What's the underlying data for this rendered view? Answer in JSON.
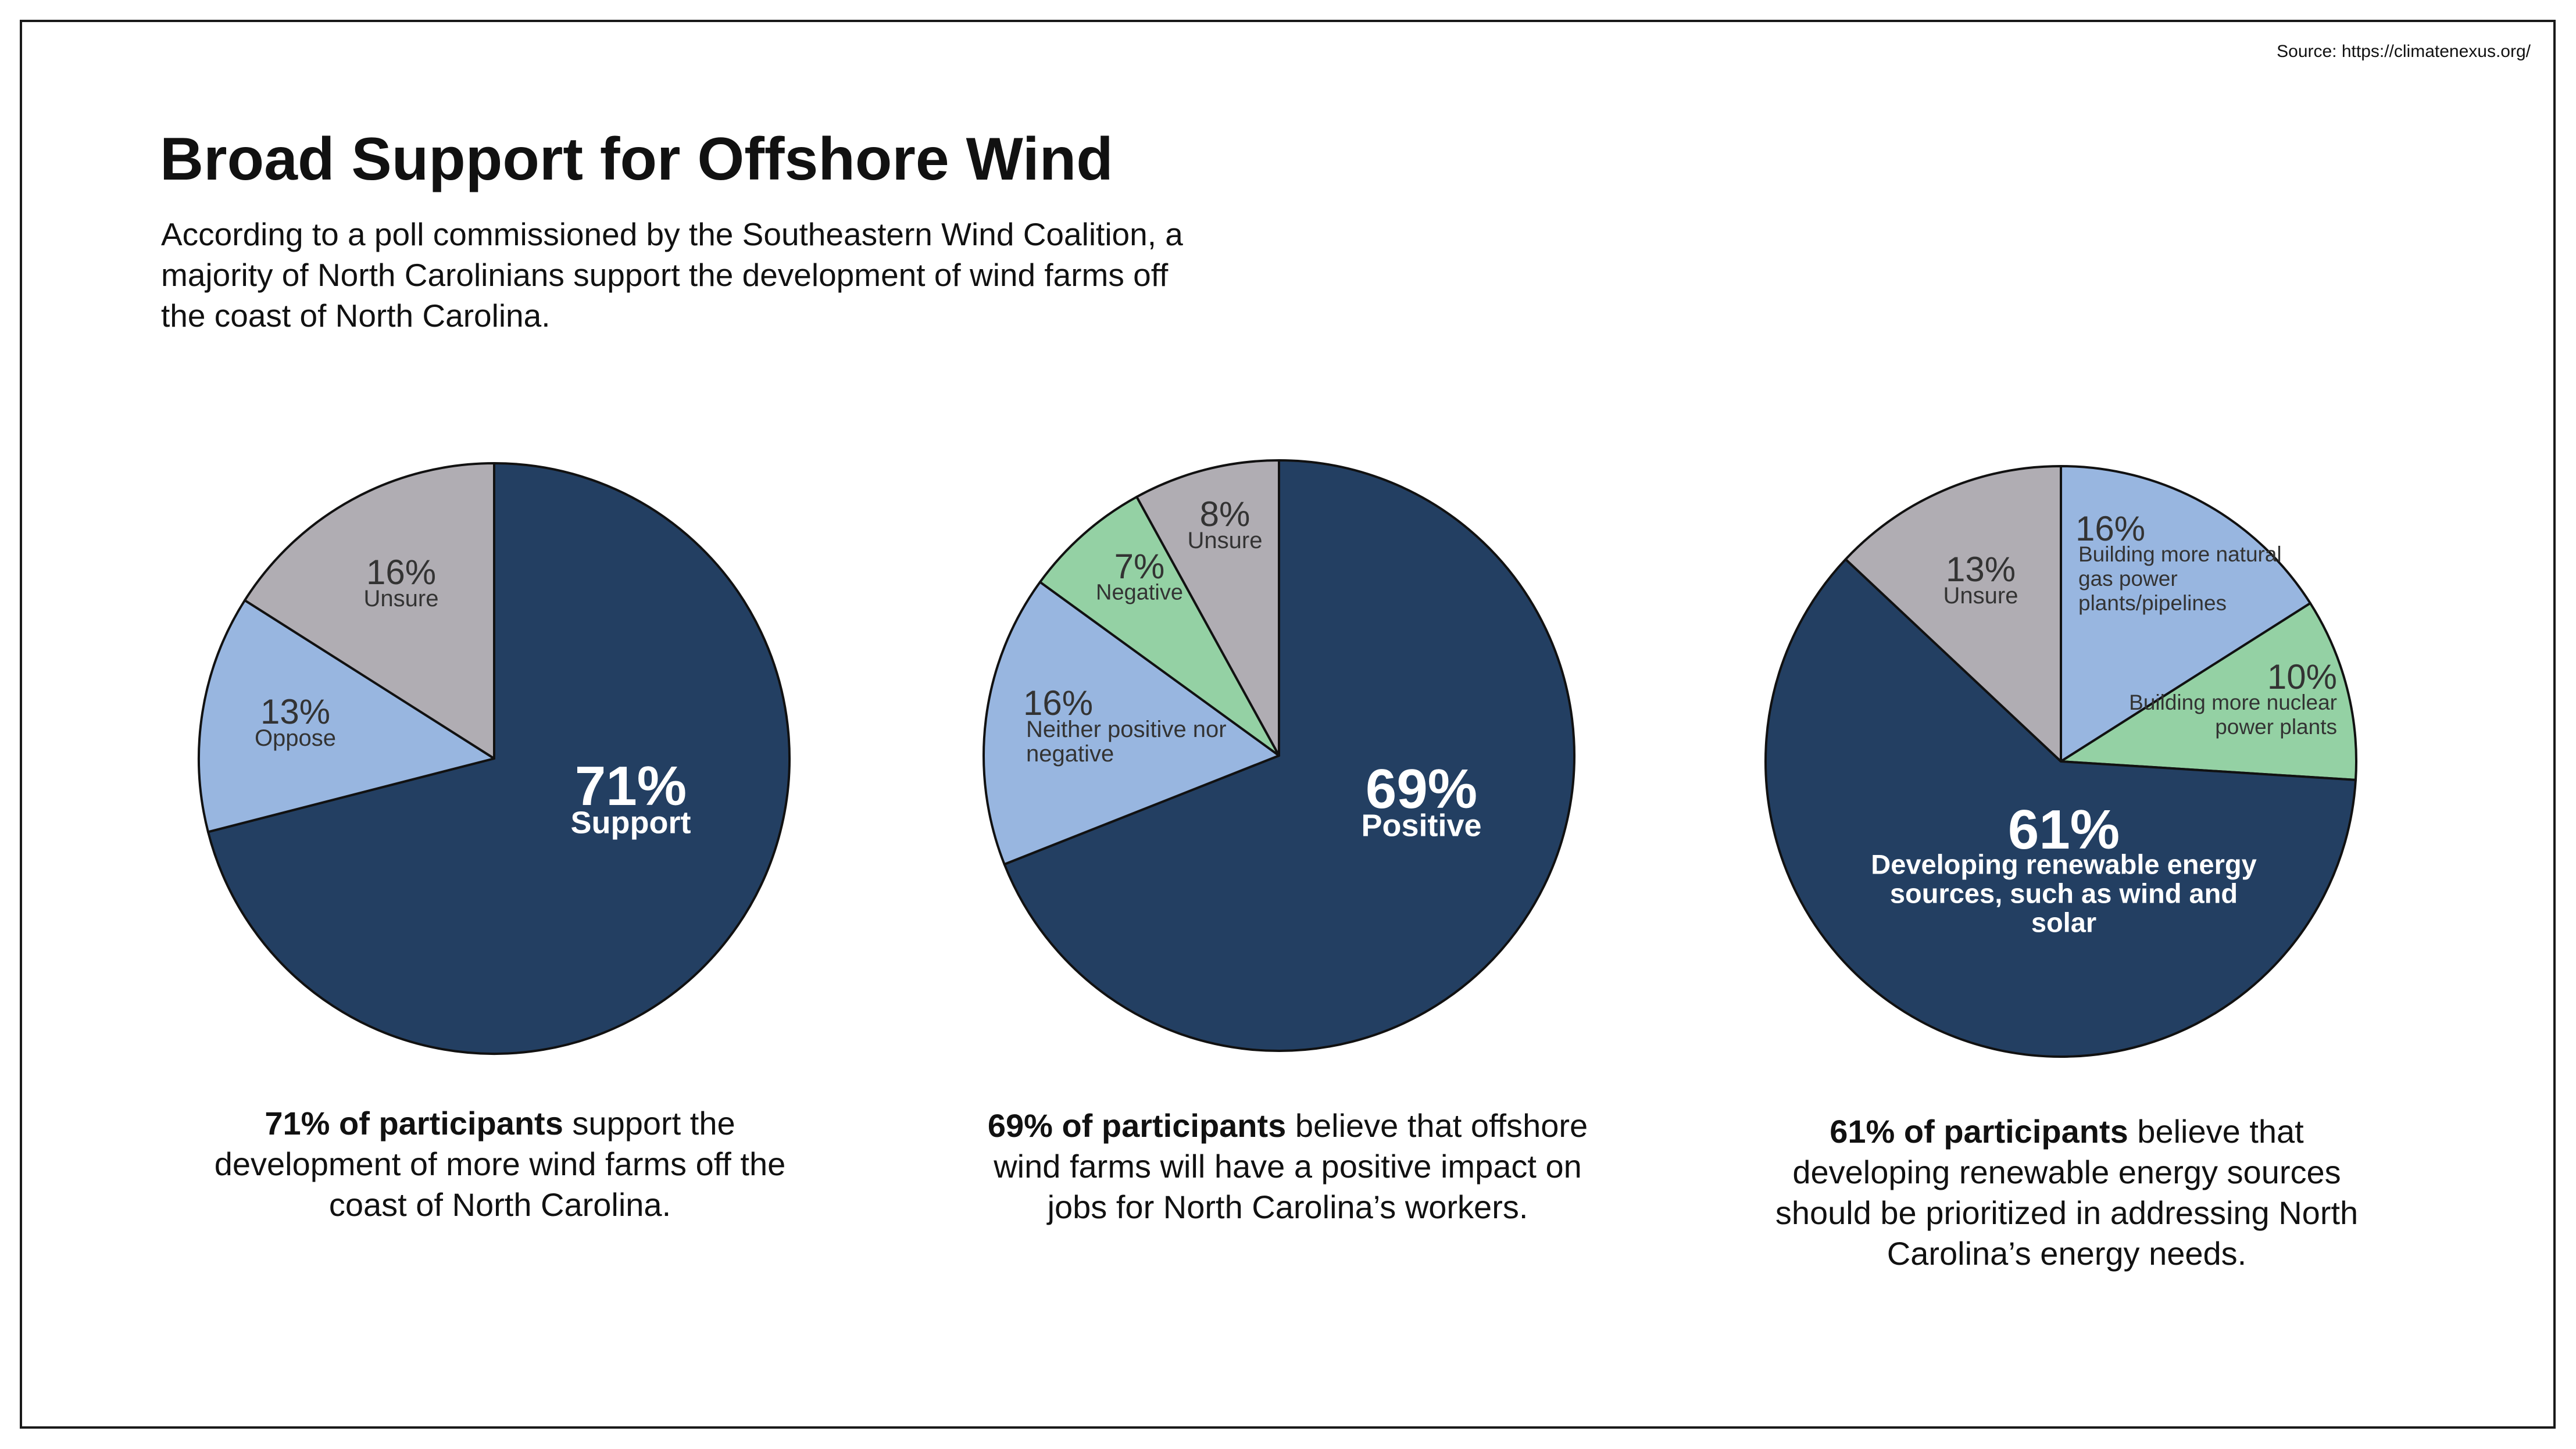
{
  "source": "Source: https://climatenexus.org/",
  "title": "Broad Support for Offshore Wind",
  "subtitle": "According to a poll commissioned by the Southeastern Wind Coalition, a majority of North Carolinians support the development of wind farms off the coast of North Carolina.",
  "colors": {
    "dark_blue": "#233f62",
    "light_blue": "#98b6e0",
    "gray": "#b0adb3",
    "green": "#94d1a4"
  },
  "chart_data": [
    {
      "type": "pie",
      "slices": [
        {
          "pct": "71%",
          "value": 71,
          "label": "Support",
          "color": "#233f62",
          "text_color": "#ffffff"
        },
        {
          "pct": "13%",
          "value": 13,
          "label": "Oppose",
          "color": "#98b6e0",
          "text_color": "#333333"
        },
        {
          "pct": "16%",
          "value": 16,
          "label": "Unsure",
          "color": "#b0adb3",
          "text_color": "#333333"
        }
      ]
    },
    {
      "type": "pie",
      "slices": [
        {
          "pct": "69%",
          "value": 69,
          "label": "Positive",
          "color": "#233f62",
          "text_color": "#ffffff"
        },
        {
          "pct": "16%",
          "value": 16,
          "label": "Neither positive nor negative",
          "color": "#98b6e0",
          "text_color": "#333333"
        },
        {
          "pct": "7%",
          "value": 7,
          "label": "Negative",
          "color": "#94d1a4",
          "text_color": "#333333"
        },
        {
          "pct": "8%",
          "value": 8,
          "label": "Unsure",
          "color": "#b0adb3",
          "text_color": "#333333"
        }
      ]
    },
    {
      "type": "pie",
      "slices": [
        {
          "pct": "16%",
          "value": 16,
          "label": "Building more natural gas power plants/pipelines",
          "color": "#98b6e0",
          "text_color": "#333333"
        },
        {
          "pct": "10%",
          "value": 10,
          "label": "Building more nuclear power plants",
          "color": "#94d1a4",
          "text_color": "#333333"
        },
        {
          "pct": "61%",
          "value": 61,
          "label": "Developing renewable energy sources, such as wind and solar",
          "color": "#233f62",
          "text_color": "#ffffff"
        },
        {
          "pct": "13%",
          "value": 13,
          "label": "Unsure",
          "color": "#b0adb3",
          "text_color": "#333333"
        }
      ]
    }
  ],
  "captions": [
    {
      "bold": "71% of participants",
      "rest": " support the development of more wind farms off the coast of North Carolina."
    },
    {
      "bold": "69% of participants",
      "rest": " believe that offshore wind farms will have a positive impact on jobs for North Carolina’s workers."
    },
    {
      "bold": "61% of participants",
      "rest": " believe that developing renewable energy sources should be prioritized in addressing North Carolina’s energy needs."
    }
  ]
}
